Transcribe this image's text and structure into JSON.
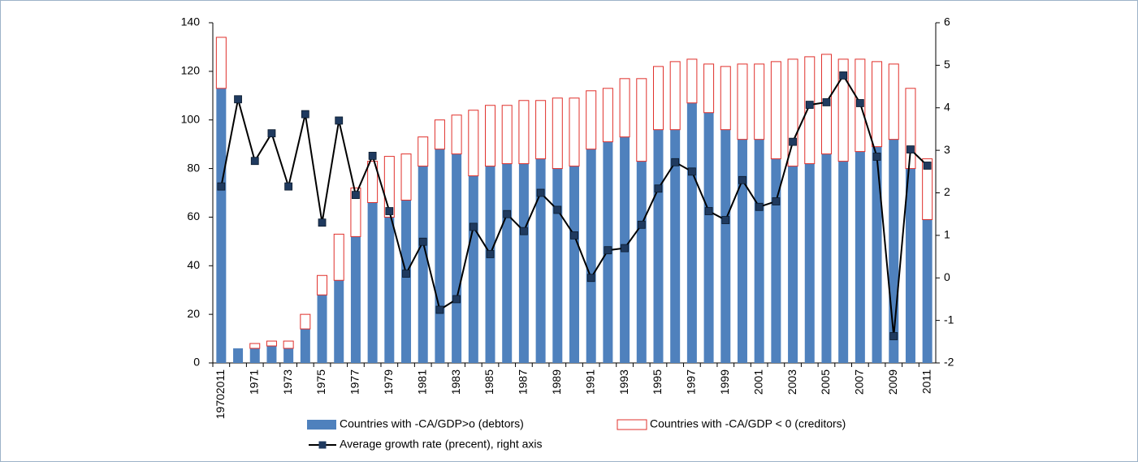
{
  "chart_data": {
    "type": "bar-line",
    "categories": [
      "19702011",
      null,
      "1971",
      null,
      "1973",
      null,
      "1975",
      null,
      "1977",
      null,
      "1979",
      null,
      "1981",
      null,
      "1983",
      null,
      "1985",
      null,
      "1987",
      null,
      "1989",
      null,
      "1991",
      null,
      "1993",
      null,
      "1995",
      null,
      "1997",
      null,
      "1999",
      null,
      "2001",
      null,
      "2003",
      null,
      "2005",
      null,
      "2007",
      null,
      "2009",
      null,
      "2011"
    ],
    "series": [
      {
        "name": "Countries with -CA/GDP>o (debtors)",
        "color": "#4f81bd",
        "stack": true,
        "values": [
          113,
          6,
          6,
          7,
          6,
          14,
          28,
          34,
          52,
          66,
          60,
          67,
          81,
          88,
          86,
          77,
          81,
          82,
          82,
          84,
          80,
          81,
          88,
          91,
          93,
          83,
          96,
          96,
          107,
          103,
          96,
          92,
          92,
          84,
          81,
          82,
          86,
          83,
          87,
          89,
          92,
          80,
          59
        ]
      },
      {
        "name": "Countries with -CA/GDP < 0 (creditors)",
        "color": "#e0302b",
        "stack": true,
        "outline": true,
        "values": [
          21,
          0,
          2,
          2,
          3,
          6,
          8,
          19,
          20,
          17,
          25,
          19,
          12,
          12,
          16,
          27,
          25,
          24,
          26,
          24,
          29,
          28,
          24,
          22,
          24,
          34,
          26,
          28,
          18,
          20,
          26,
          31,
          31,
          40,
          44,
          44,
          41,
          42,
          38,
          35,
          31,
          33,
          25
        ]
      },
      {
        "name": "Average growth rate (precent), right axis",
        "color": "#000000",
        "marker_color": "#1f3a5f",
        "axis": "y2",
        "values": [
          2.15,
          4.2,
          2.75,
          3.4,
          2.15,
          3.85,
          1.3,
          3.7,
          1.95,
          2.87,
          1.57,
          0.1,
          0.85,
          -0.75,
          -0.5,
          1.2,
          0.56,
          1.5,
          1.1,
          2.0,
          1.6,
          1.0,
          0.0,
          0.65,
          0.7,
          1.25,
          2.1,
          2.72,
          2.5,
          1.57,
          1.36,
          2.3,
          1.67,
          1.8,
          3.2,
          4.07,
          4.13,
          4.76,
          4.11,
          2.85,
          -1.37,
          3.02,
          2.64
        ]
      }
    ],
    "ylim": [
      0,
      140
    ],
    "yticks": [
      0,
      20,
      40,
      60,
      80,
      100,
      120,
      140
    ],
    "y2lim": [
      -2,
      6
    ],
    "y2ticks": [
      -2,
      -1,
      0,
      1,
      2,
      3,
      4,
      5,
      6
    ],
    "grid": false
  }
}
